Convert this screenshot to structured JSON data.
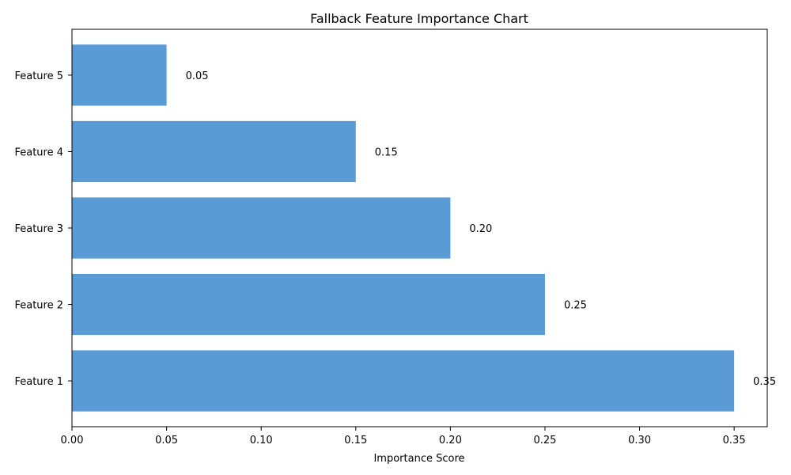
{
  "chart_data": {
    "type": "bar",
    "orientation": "horizontal",
    "title": "Fallback Feature Importance Chart",
    "xlabel": "Importance Score",
    "ylabel": "",
    "categories": [
      "Feature 1",
      "Feature 2",
      "Feature 3",
      "Feature 4",
      "Feature 5"
    ],
    "values": [
      0.35,
      0.25,
      0.2,
      0.15,
      0.05
    ],
    "data_labels": [
      "0.35",
      "0.25",
      "0.20",
      "0.15",
      "0.05"
    ],
    "xlim": [
      0,
      0.3675
    ],
    "xticks": [
      0.0,
      0.05,
      0.1,
      0.15,
      0.2,
      0.25,
      0.3,
      0.35
    ],
    "xtick_labels": [
      "0.00",
      "0.05",
      "0.10",
      "0.15",
      "0.20",
      "0.25",
      "0.30",
      "0.35"
    ],
    "grid": false,
    "legend": "none",
    "bar_color": "#5b9bd5"
  }
}
